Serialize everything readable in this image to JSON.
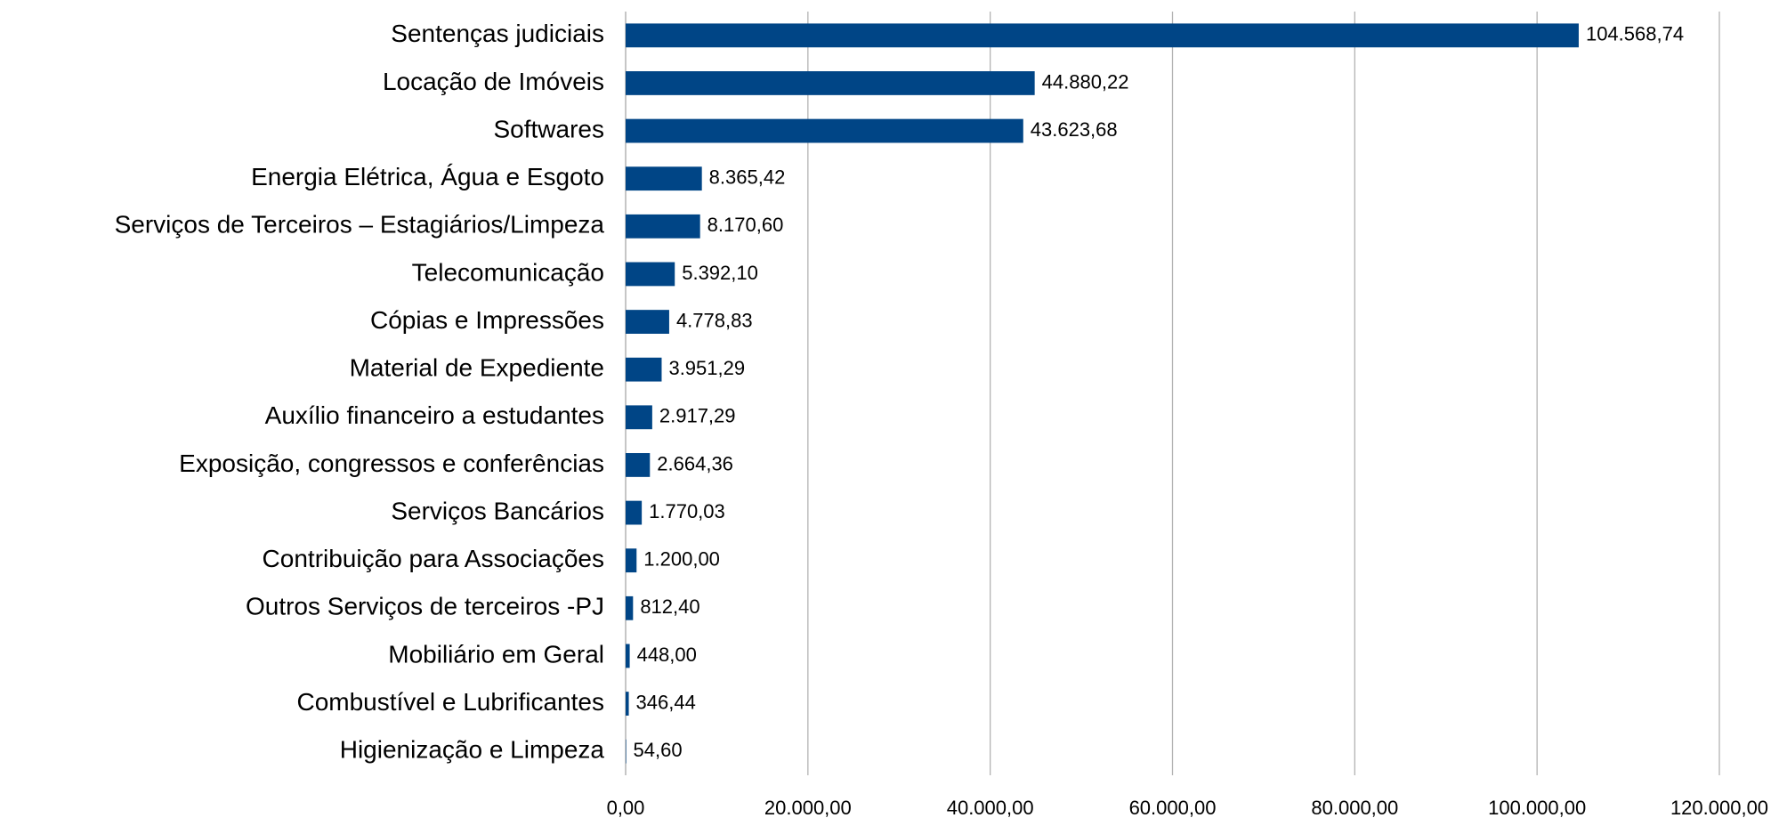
{
  "chart_data": {
    "type": "bar",
    "orientation": "horizontal",
    "categories": [
      "Sentenças judiciais",
      "Locação de Imóveis",
      "Softwares",
      "Energia Elétrica, Água e Esgoto",
      "Serviços de Terceiros – Estagiários/Limpeza",
      "Telecomunicação",
      "Cópias e Impressões",
      "Material de Expediente",
      "Auxílio financeiro a estudantes",
      "Exposição, congressos e conferências",
      "Serviços Bancários",
      "Contribuição para Associações",
      "Outros Serviços de terceiros -PJ",
      "Mobiliário em Geral",
      "Combustível e Lubrificantes",
      "Higienização e Limpeza"
    ],
    "values": [
      104568.74,
      44880.22,
      43623.68,
      8365.42,
      8170.6,
      5392.1,
      4778.83,
      3951.29,
      2917.29,
      2664.36,
      1770.03,
      1200.0,
      812.4,
      448.0,
      346.44,
      54.6
    ],
    "value_labels": [
      "104.568,74",
      "44.880,22",
      "43.623,68",
      "8.365,42",
      "8.170,60",
      "5.392,10",
      "4.778,83",
      "3.951,29",
      "2.917,29",
      "2.664,36",
      "1.770,03",
      "1.200,00",
      "812,40",
      "448,00",
      "346,44",
      "54,60"
    ],
    "color": "#004586",
    "xlim": [
      0,
      120000
    ],
    "xticks": [
      {
        "value": 0,
        "label": "0,00"
      },
      {
        "value": 20000,
        "label": "20.000,00"
      },
      {
        "value": 40000,
        "label": "40.000,00"
      },
      {
        "value": 60000,
        "label": "60.000,00"
      },
      {
        "value": 80000,
        "label": "80.000,00"
      },
      {
        "value": 100000,
        "label": "100.000,00"
      },
      {
        "value": 120000,
        "label": "120.000,00"
      }
    ],
    "grid": true
  }
}
